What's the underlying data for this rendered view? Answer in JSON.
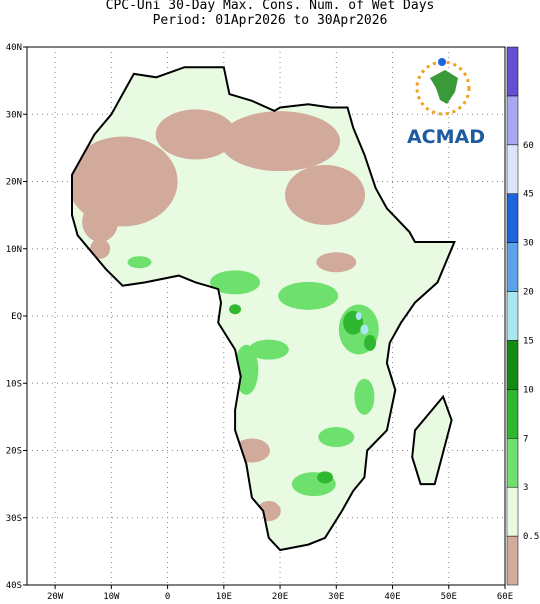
{
  "title": "CPC-Uni 30-Day Max. Cons. Num. of Wet Days",
  "subtitle": "Period: 01Apr2026 to 30Apr2026",
  "lon_labels": [
    "20W",
    "10W",
    "0",
    "10E",
    "20E",
    "30E",
    "40E",
    "50E",
    "60E"
  ],
  "lat_labels": [
    "40N",
    "30N",
    "20N",
    "10N",
    "EQ",
    "10S",
    "20S",
    "30S",
    "40S"
  ],
  "colorbar": {
    "labels": [
      "0.5",
      "3",
      "7",
      "10",
      "15",
      "20",
      "30",
      "45",
      "60"
    ],
    "colors": [
      "#d2aa9c",
      "#e8fbe2",
      "#6ee06e",
      "#2fb82f",
      "#148c14",
      "#aae6f0",
      "#5aa5ea",
      "#1e64dc",
      "#dce6fa",
      "#a8a8f2",
      "#6450d2"
    ]
  },
  "logo": "ACMAD"
}
